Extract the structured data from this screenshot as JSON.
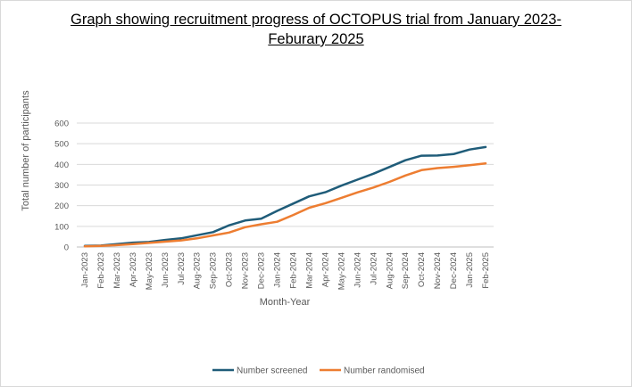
{
  "chart_data": {
    "type": "line",
    "title": "Graph showing recruitment progress of OCTOPUS trial from January 2023-Feburary 2025",
    "xlabel": "Month-Year",
    "ylabel": "Total number of participants",
    "ylim": [
      0,
      600
    ],
    "yticks": [
      0,
      100,
      200,
      300,
      400,
      500,
      600
    ],
    "grid": true,
    "legend_position": "bottom",
    "categories": [
      "Jan-2023",
      "Feb-2023",
      "Mar-2023",
      "Apr-2023",
      "May-2023",
      "Jun-2023",
      "Jul-2023",
      "Aug-2023",
      "Sep-2023",
      "Oct-2023",
      "Nov-2023",
      "Dec-2023",
      "Jan-2024",
      "Feb-2024",
      "Mar-2024",
      "Apr-2024",
      "May-2024",
      "Jun-2024",
      "Jul-2024",
      "Aug-2024",
      "Sep-2024",
      "Oct-2024",
      "Nov-2024",
      "Dec-2024",
      "Jan-2025",
      "Feb-2025"
    ],
    "series": [
      {
        "name": "Number screened",
        "color": "#1f5c79",
        "values": [
          5,
          7,
          14,
          21,
          24,
          34,
          42,
          57,
          72,
          105,
          128,
          137,
          175,
          210,
          245,
          265,
          297,
          326,
          355,
          387,
          420,
          442,
          443,
          450,
          472,
          484
        ]
      },
      {
        "name": "Number randomised",
        "color": "#ed7d31",
        "values": [
          3,
          5,
          9,
          14,
          20,
          26,
          32,
          42,
          56,
          70,
          96,
          110,
          122,
          155,
          190,
          212,
          238,
          264,
          288,
          315,
          346,
          372,
          382,
          388,
          396,
          405
        ]
      }
    ]
  }
}
